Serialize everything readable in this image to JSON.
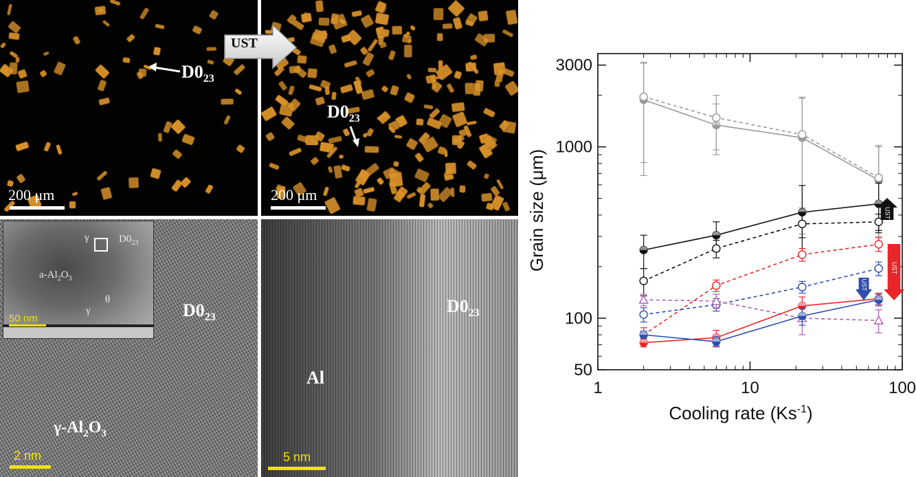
{
  "panels": {
    "a": {
      "scale": "200 μm",
      "label_base": "D0",
      "label_sub": "23"
    },
    "b": {
      "arrow_label": "UST",
      "scale": "200 μm",
      "label_base": "D0",
      "label_sub": "23"
    },
    "c": {
      "phase_label_base": "D0",
      "phase_label_sub": "23",
      "gamma_base": "γ-Al",
      "gamma_sub1": "2",
      "gamma_mid": "O",
      "gamma_sub2": "3",
      "scale": "2 nm",
      "inset": {
        "gamma_top": "γ",
        "d023_base": "D0",
        "d023_sub": "23",
        "a_al2o3_base": "a-Al",
        "a_al2o3_sub1": "2",
        "a_al2o3_mid": "O",
        "a_al2o3_sub2": "3",
        "theta": "θ",
        "gamma_bottom": "γ",
        "scale": "50 nm"
      }
    },
    "d": {
      "label_al": "Al",
      "label_base": "D0",
      "label_sub": "23",
      "scale": "5 nm"
    }
  },
  "chart_data": {
    "type": "line",
    "xscale": "log",
    "yscale": "log",
    "xlim": [
      1,
      100
    ],
    "ylim": [
      50,
      3500
    ],
    "xticks": [
      "1",
      "10",
      "100"
    ],
    "yticks": [
      "50",
      "100",
      "1000",
      "3000"
    ],
    "xlabel_base": "Cooling rate (Ks",
    "xlabel_sup": "-1",
    "xlabel_end": ")",
    "ylabel": "Grain size (μm)",
    "series": [
      {
        "color": "#9a9a9a",
        "style": "solid",
        "marker": "half-circle",
        "x": [
          2,
          6,
          22,
          70
        ],
        "y": [
          1880,
          1340,
          1130,
          640
        ],
        "err": [
          1200,
          440,
          820,
          360
        ]
      },
      {
        "color": "#9a9a9a",
        "style": "dashed",
        "marker": "open-circle",
        "x": [
          2,
          6,
          22,
          70
        ],
        "y": [
          1960,
          1480,
          1180,
          660
        ],
        "err": [
          1150,
          520,
          740,
          360
        ]
      },
      {
        "color": "#111111",
        "style": "solid",
        "marker": "half-circle",
        "x": [
          2,
          6,
          22,
          70
        ],
        "y": [
          250,
          305,
          415,
          465
        ],
        "err": [
          55,
          60,
          180,
          150
        ]
      },
      {
        "color": "#111111",
        "style": "dashed",
        "marker": "open-circle",
        "x": [
          2,
          6,
          22,
          70
        ],
        "y": [
          165,
          255,
          355,
          365
        ],
        "err": [
          30,
          30,
          60,
          40
        ]
      },
      {
        "color": "#e8262a",
        "style": "dashed",
        "marker": "open-circle",
        "x": [
          2,
          6,
          22,
          70
        ],
        "y": [
          80,
          155,
          235,
          270
        ],
        "err": [
          8,
          12,
          20,
          25
        ]
      },
      {
        "color": "#2f4dad",
        "style": "dashed",
        "marker": "open-circle",
        "x": [
          2,
          6,
          22,
          70
        ],
        "y": [
          105,
          120,
          152,
          195
        ],
        "err": [
          10,
          10,
          12,
          18
        ]
      },
      {
        "color": "#b05ab5",
        "style": "dashed",
        "marker": "open-triangle",
        "x": [
          2,
          6,
          22,
          70
        ],
        "y": [
          128,
          126,
          100,
          97
        ],
        "err": [
          10,
          12,
          20,
          15
        ]
      },
      {
        "color": "#e8262a",
        "style": "solid",
        "marker": "half-circle",
        "x": [
          2,
          6,
          22,
          70
        ],
        "y": [
          72,
          77,
          118,
          130
        ],
        "err": [
          4,
          8,
          15,
          10
        ]
      },
      {
        "color": "#2f4dad",
        "style": "solid",
        "marker": "half-circle",
        "x": [
          2,
          6,
          22,
          70
        ],
        "y": [
          80,
          73,
          103,
          128
        ],
        "err": [
          4,
          5,
          12,
          10
        ]
      }
    ],
    "arrows": [
      {
        "label": "UST",
        "color": "#111111",
        "direction": "up"
      },
      {
        "label": "UST",
        "color": "#e8262a",
        "direction": "down"
      },
      {
        "label": "UST",
        "color": "#2f4dad",
        "direction": "down"
      }
    ]
  }
}
